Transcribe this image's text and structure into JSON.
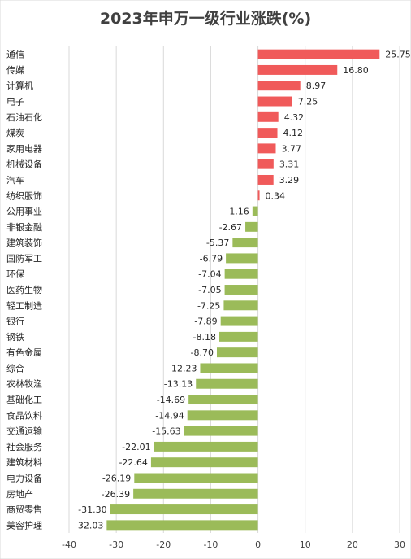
{
  "chart_data": {
    "type": "bar",
    "orientation": "horizontal",
    "title": "2023年申万一级行业涨跌(%)",
    "xlabel": "",
    "ylabel": "",
    "xlim": [
      -40,
      30
    ],
    "xticks": [
      -40,
      -30,
      -20,
      -10,
      0,
      10,
      20,
      30
    ],
    "grid": true,
    "legend": "none",
    "positive_color": "#f05a5a",
    "negative_color": "#9bbb59",
    "categories": [
      "通信",
      "传媒",
      "计算机",
      "电子",
      "石油石化",
      "煤炭",
      "家用电器",
      "机械设备",
      "汽车",
      "纺织服饰",
      "公用事业",
      "非银金融",
      "建筑装饰",
      "国防军工",
      "环保",
      "医药生物",
      "轻工制造",
      "银行",
      "钢铁",
      "有色金属",
      "综合",
      "农林牧渔",
      "基础化工",
      "食品饮料",
      "交通运输",
      "社会服务",
      "建筑材料",
      "电力设备",
      "房地产",
      "商贸零售",
      "美容护理"
    ],
    "values": [
      25.75,
      16.8,
      8.97,
      7.25,
      4.32,
      4.12,
      3.77,
      3.31,
      3.29,
      0.34,
      -1.16,
      -2.67,
      -5.37,
      -6.79,
      -7.04,
      -7.05,
      -7.25,
      -7.89,
      -8.18,
      -8.7,
      -12.23,
      -13.13,
      -14.69,
      -14.94,
      -15.63,
      -22.01,
      -22.64,
      -26.19,
      -26.39,
      -31.3,
      -32.03
    ],
    "value_labels": [
      "25.75",
      "16.80",
      "8.97",
      "7.25",
      "4.32",
      "4.12",
      "3.77",
      "3.31",
      "3.29",
      "0.34",
      "-1.16",
      "-2.67",
      "-5.37",
      "-6.79",
      "-7.04",
      "-7.05",
      "-7.25",
      "-7.89",
      "-8.18",
      "-8.70",
      "-12.23",
      "-13.13",
      "-14.69",
      "-14.94",
      "-15.63",
      "-22.01",
      "-22.64",
      "-26.19",
      "-26.39",
      "-31.30",
      "-32.03"
    ]
  }
}
